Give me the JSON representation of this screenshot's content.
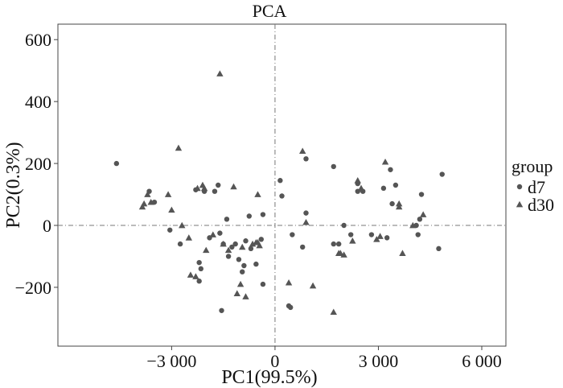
{
  "chart_data": {
    "type": "scatter",
    "title": "PCA",
    "xlabel": "PC1(99.5%)",
    "ylabel": "PC2(0.3%)",
    "xlim": [
      -6300,
      6700
    ],
    "ylim": [
      -390,
      650
    ],
    "x_ticks": [
      -3000,
      0,
      3000,
      6000
    ],
    "x_tick_labels": [
      "−3 000",
      "0",
      "3 000",
      "6 000"
    ],
    "y_ticks": [
      -200,
      0,
      200,
      400,
      600
    ],
    "y_tick_labels": [
      "−200",
      "0",
      "200",
      "400",
      "600"
    ],
    "grid": false,
    "reference_lines": {
      "x": 0,
      "y": 0,
      "style": "dash-dot"
    },
    "legend": {
      "title": "group",
      "position": "right"
    },
    "point_color": "#555555",
    "series": [
      {
        "name": "d7",
        "marker": "circle",
        "points": [
          [
            -4600,
            200
          ],
          [
            -3650,
            110
          ],
          [
            -3500,
            75
          ],
          [
            -3050,
            -15
          ],
          [
            -2750,
            -60
          ],
          [
            -2300,
            115
          ],
          [
            -2200,
            -120
          ],
          [
            -2150,
            -140
          ],
          [
            -2200,
            -180
          ],
          [
            -2050,
            110
          ],
          [
            -1900,
            -40
          ],
          [
            -1750,
            110
          ],
          [
            -1650,
            130
          ],
          [
            -1600,
            -25
          ],
          [
            -1550,
            -275
          ],
          [
            -1500,
            -60
          ],
          [
            -1400,
            20
          ],
          [
            -1350,
            -100
          ],
          [
            -1250,
            -70
          ],
          [
            -1150,
            -60
          ],
          [
            -1050,
            -110
          ],
          [
            -950,
            -150
          ],
          [
            -900,
            -130
          ],
          [
            -850,
            -50
          ],
          [
            -750,
            30
          ],
          [
            -700,
            -75
          ],
          [
            -550,
            -125
          ],
          [
            -400,
            -45
          ],
          [
            -350,
            -190
          ],
          [
            -350,
            35
          ],
          [
            150,
            145
          ],
          [
            200,
            95
          ],
          [
            400,
            -260
          ],
          [
            450,
            -265
          ],
          [
            500,
            -30
          ],
          [
            800,
            -70
          ],
          [
            900,
            215
          ],
          [
            900,
            40
          ],
          [
            1700,
            190
          ],
          [
            1700,
            -60
          ],
          [
            1850,
            -60
          ],
          [
            2000,
            0
          ],
          [
            2200,
            -30
          ],
          [
            2400,
            135
          ],
          [
            2400,
            110
          ],
          [
            2550,
            110
          ],
          [
            2800,
            -30
          ],
          [
            3150,
            120
          ],
          [
            3250,
            -40
          ],
          [
            3350,
            180
          ],
          [
            3400,
            70
          ],
          [
            3500,
            130
          ],
          [
            4100,
            0
          ],
          [
            4150,
            -30
          ],
          [
            4200,
            20
          ],
          [
            4250,
            100
          ],
          [
            4750,
            -75
          ],
          [
            4850,
            165
          ]
        ]
      },
      {
        "name": "d30",
        "marker": "triangle",
        "points": [
          [
            -3700,
            100
          ],
          [
            -3800,
            70
          ],
          [
            -3850,
            60
          ],
          [
            -3600,
            75
          ],
          [
            -3100,
            100
          ],
          [
            -3000,
            50
          ],
          [
            -2800,
            250
          ],
          [
            -2700,
            0
          ],
          [
            -2500,
            -40
          ],
          [
            -2450,
            -160
          ],
          [
            -2300,
            -165
          ],
          [
            -2250,
            120
          ],
          [
            -2100,
            130
          ],
          [
            -2050,
            120
          ],
          [
            -2000,
            -80
          ],
          [
            -1800,
            -30
          ],
          [
            -1600,
            490
          ],
          [
            -1500,
            -60
          ],
          [
            -1350,
            -80
          ],
          [
            -1200,
            125
          ],
          [
            -1100,
            -220
          ],
          [
            -1000,
            -190
          ],
          [
            -950,
            -70
          ],
          [
            -850,
            -230
          ],
          [
            -650,
            -60
          ],
          [
            -550,
            -55
          ],
          [
            -500,
            -55
          ],
          [
            -500,
            100
          ],
          [
            -450,
            -65
          ],
          [
            400,
            -185
          ],
          [
            1100,
            -195
          ],
          [
            800,
            240
          ],
          [
            900,
            10
          ],
          [
            1700,
            -280
          ],
          [
            1850,
            -90
          ],
          [
            1900,
            -90
          ],
          [
            2000,
            -95
          ],
          [
            2250,
            -50
          ],
          [
            2400,
            145
          ],
          [
            2500,
            120
          ],
          [
            2950,
            -45
          ],
          [
            3050,
            -35
          ],
          [
            3200,
            205
          ],
          [
            3600,
            60
          ],
          [
            3600,
            70
          ],
          [
            3700,
            -90
          ],
          [
            4000,
            0
          ],
          [
            4300,
            35
          ]
        ]
      }
    ]
  }
}
